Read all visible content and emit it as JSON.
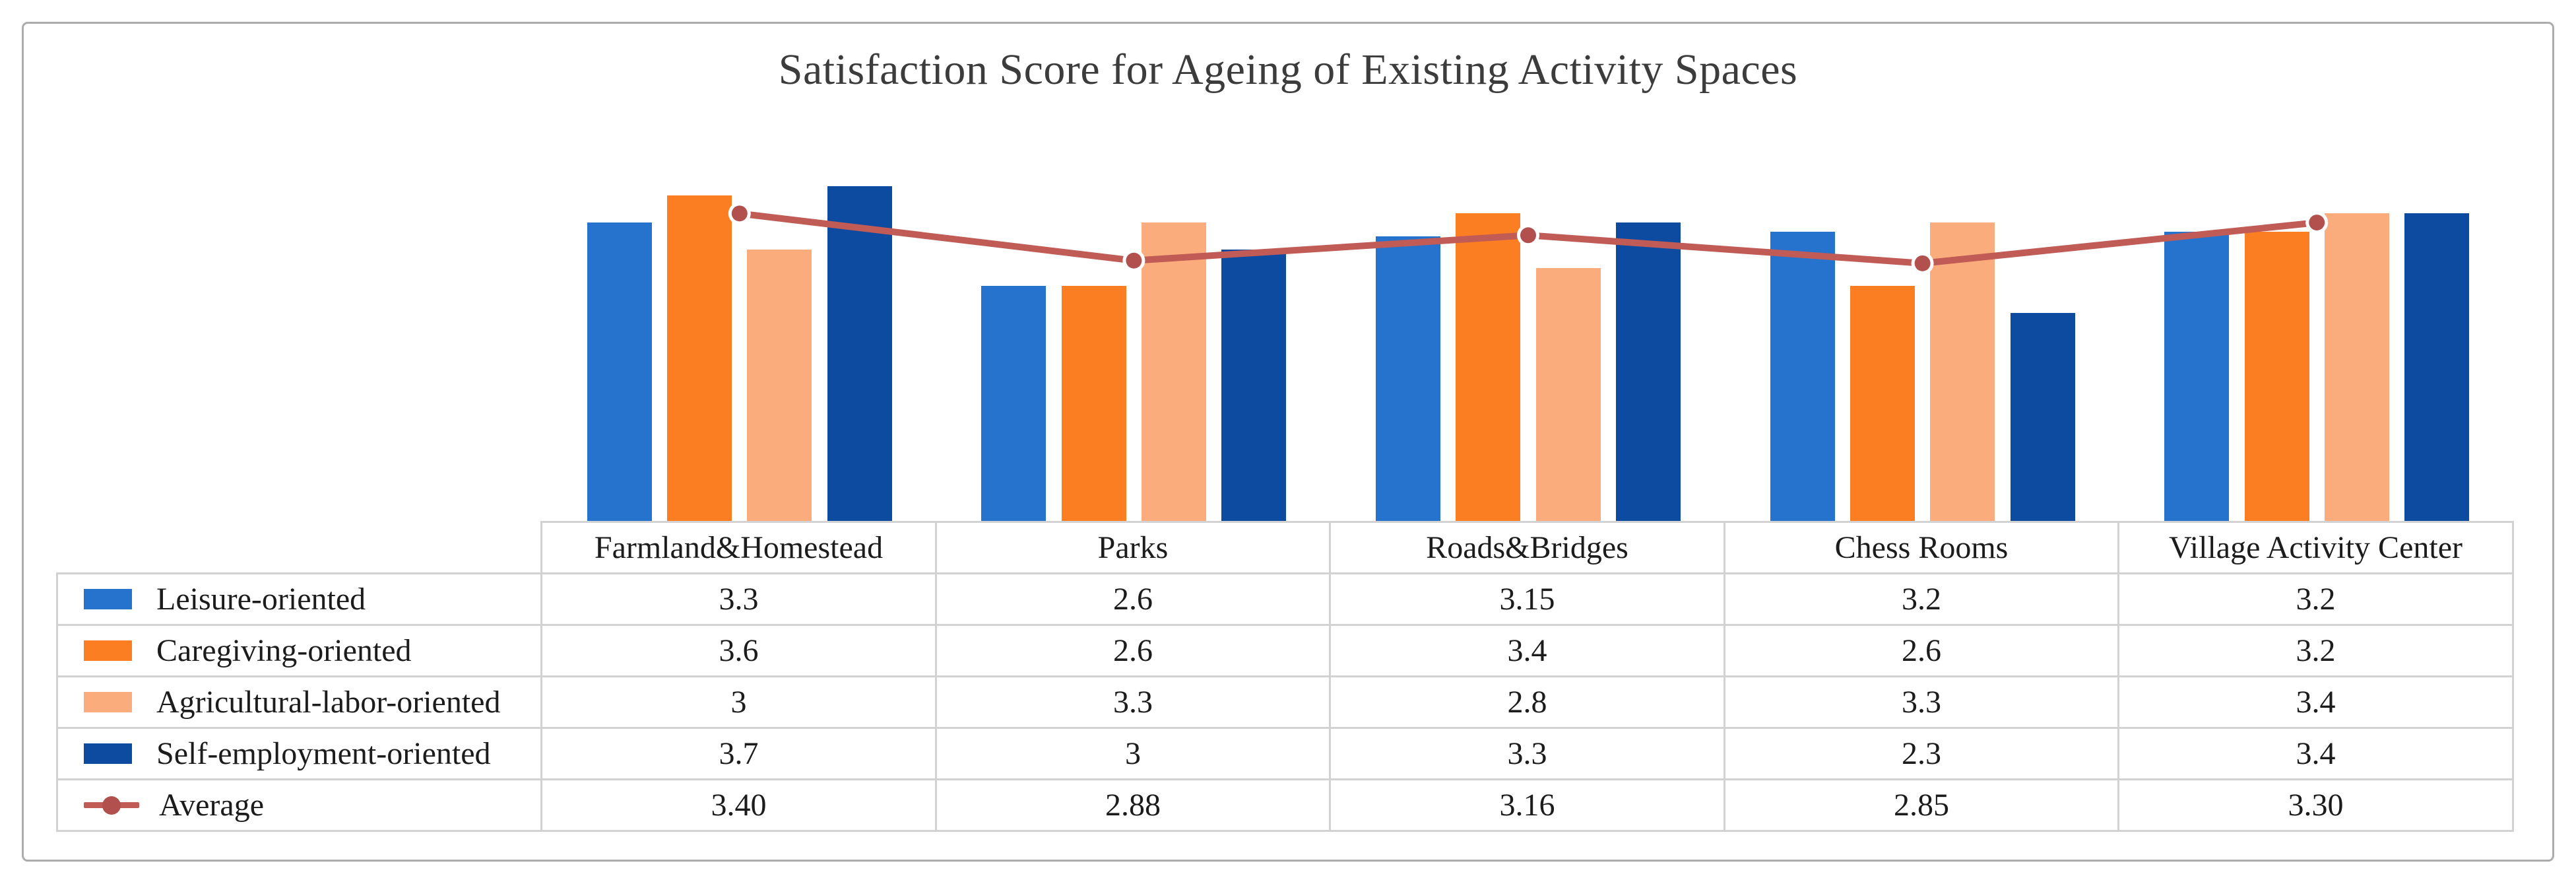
{
  "chart_data": {
    "type": "bar",
    "subtype": "clustered-bars-with-line-overlay-and-data-table",
    "title": "Satisfaction Score for Ageing of Existing Activity Spaces",
    "categories": [
      "Farmland&Homestead",
      "Parks",
      "Roads&Bridges",
      "Chess Rooms",
      "Village Activity Center"
    ],
    "series": [
      {
        "name": "Leisure-oriented",
        "type": "bar",
        "color": "#2673CE",
        "values": [
          3.3,
          2.6,
          3.15,
          3.2,
          3.2
        ],
        "cells": [
          "3.3",
          "2.6",
          "3.15",
          "3.2",
          "3.2"
        ]
      },
      {
        "name": "Caregiving-oriented",
        "type": "bar",
        "color": "#FB7E23",
        "values": [
          3.6,
          2.6,
          3.4,
          2.6,
          3.2
        ],
        "cells": [
          "3.6",
          "2.6",
          "3.4",
          "2.6",
          "3.2"
        ]
      },
      {
        "name": "Agricultural-labor-oriented",
        "type": "bar",
        "color": "#FBAC7C",
        "values": [
          3.0,
          3.3,
          2.8,
          3.3,
          3.4
        ],
        "cells": [
          "3",
          "3.3",
          "2.8",
          "3.3",
          "3.4"
        ]
      },
      {
        "name": "Self-employment-oriented",
        "type": "bar",
        "color": "#0D4BA0",
        "values": [
          3.7,
          3.0,
          3.3,
          2.3,
          3.4
        ],
        "cells": [
          "3.7",
          "3",
          "3.3",
          "2.3",
          "3.4"
        ]
      },
      {
        "name": "Average",
        "type": "line",
        "color": "#C05B55",
        "marker_color": "#B2504E",
        "values": [
          3.4,
          2.88,
          3.16,
          2.85,
          3.3
        ],
        "cells": [
          "3.40",
          "2.88",
          "3.16",
          "2.85",
          "3.30"
        ]
      }
    ],
    "ylim": [
      0,
      4
    ],
    "xlabel": "",
    "ylabel": "",
    "y_axis_visible": false,
    "gridlines": false,
    "data_table_shown": true,
    "legend_position": "data-table-left-column"
  },
  "style_colors": {
    "frame_border": "#ACACAC",
    "table_border": "#D2D2D2",
    "title_text": "#3C3C3C",
    "table_text": "#1C1C1C",
    "background": "#FFFFFF"
  }
}
